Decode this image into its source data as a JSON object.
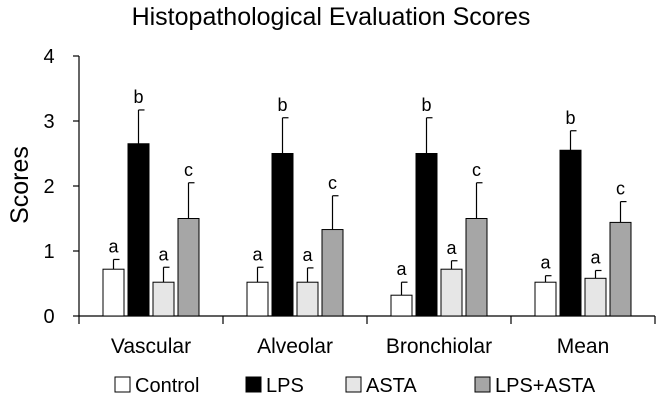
{
  "chart_data": {
    "type": "bar",
    "title": "Histopathological Evaluation Scores",
    "xlabel": "",
    "ylabel": "Scores",
    "ylim": [
      0,
      4
    ],
    "yticks": [
      "0",
      "1",
      "2",
      "3",
      "4"
    ],
    "categories": [
      "Vascular",
      "Alveolar",
      "Bronchiolar",
      "Mean"
    ],
    "series": [
      {
        "name": "Control",
        "color": "#ffffff",
        "values": [
          0.72,
          0.52,
          0.32,
          0.52
        ],
        "errors": [
          0.15,
          0.23,
          0.2,
          0.1
        ],
        "labels": [
          "a",
          "a",
          "a",
          "a"
        ]
      },
      {
        "name": "LPS",
        "color": "#000000",
        "values": [
          2.65,
          2.5,
          2.5,
          2.55
        ],
        "errors": [
          0.52,
          0.55,
          0.55,
          0.3
        ],
        "labels": [
          "b",
          "b",
          "b",
          "b"
        ]
      },
      {
        "name": "ASTA",
        "color": "#e6e6e6",
        "values": [
          0.52,
          0.52,
          0.72,
          0.58
        ],
        "errors": [
          0.23,
          0.22,
          0.13,
          0.12
        ],
        "labels": [
          "a",
          "a",
          "a",
          "a"
        ]
      },
      {
        "name": "LPS+ASTA",
        "color": "#a6a6a6",
        "values": [
          1.5,
          1.33,
          1.5,
          1.44
        ],
        "errors": [
          0.55,
          0.52,
          0.55,
          0.32
        ],
        "labels": [
          "c",
          "c",
          "c",
          "c"
        ]
      }
    ],
    "grid": false,
    "legend_position": "bottom"
  }
}
